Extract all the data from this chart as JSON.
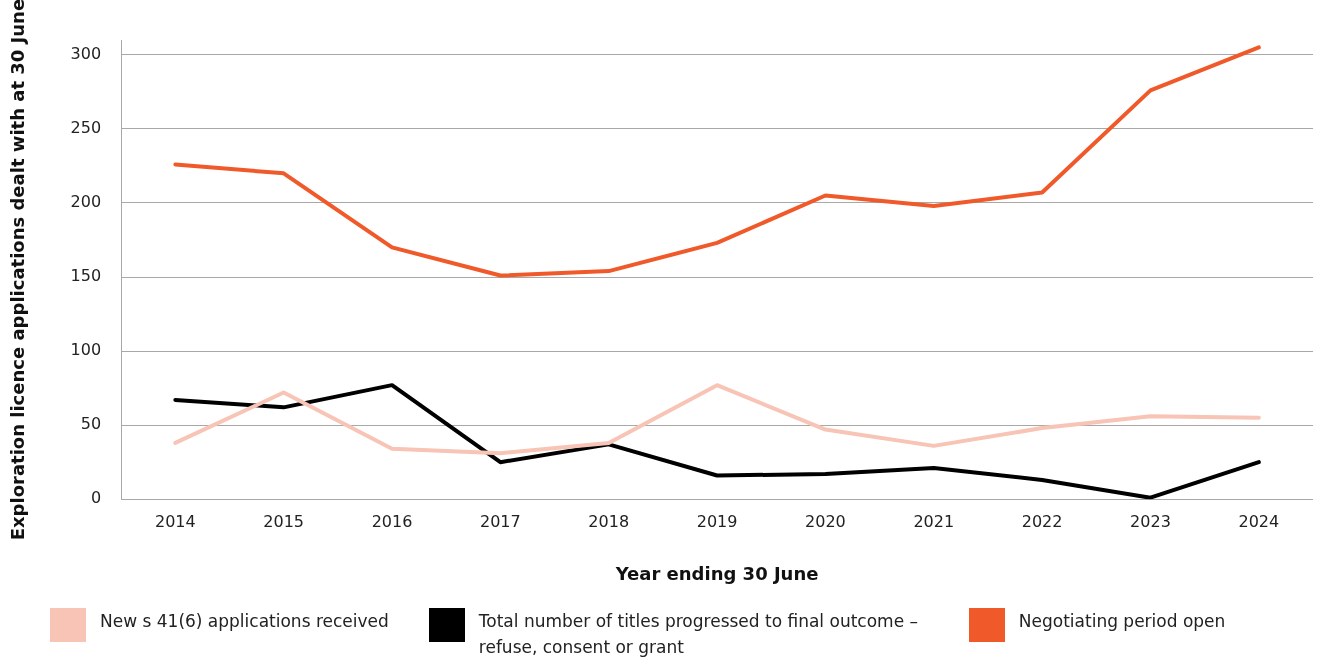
{
  "chart_data": {
    "type": "line",
    "xlabel": "Year ending 30 June",
    "ylabel": "Exploration licence applications dealt with at 30 June",
    "categories": [
      "2014",
      "2015",
      "2016",
      "2017",
      "2018",
      "2019",
      "2020",
      "2021",
      "2022",
      "2023",
      "2024"
    ],
    "series": [
      {
        "name": "New s 41(6) applications received",
        "color": "#f7c4b5",
        "values": [
          38,
          72,
          34,
          31,
          38,
          77,
          47,
          36,
          48,
          56,
          55
        ]
      },
      {
        "name": "Total number of titles progressed to final outcome – refuse, consent or grant",
        "color": "#000000",
        "values": [
          67,
          62,
          77,
          25,
          37,
          16,
          17,
          21,
          13,
          1,
          25
        ]
      },
      {
        "name": "Negotiating period open",
        "color": "#f05a2a",
        "values": [
          226,
          220,
          170,
          151,
          154,
          173,
          205,
          198,
          207,
          276,
          305
        ]
      }
    ],
    "ylim": [
      0,
      310
    ],
    "yticks": [
      0,
      50,
      100,
      150,
      200,
      250,
      300
    ],
    "grid": "y",
    "legend": "bottom",
    "marker": "none",
    "line_style": "solid"
  }
}
